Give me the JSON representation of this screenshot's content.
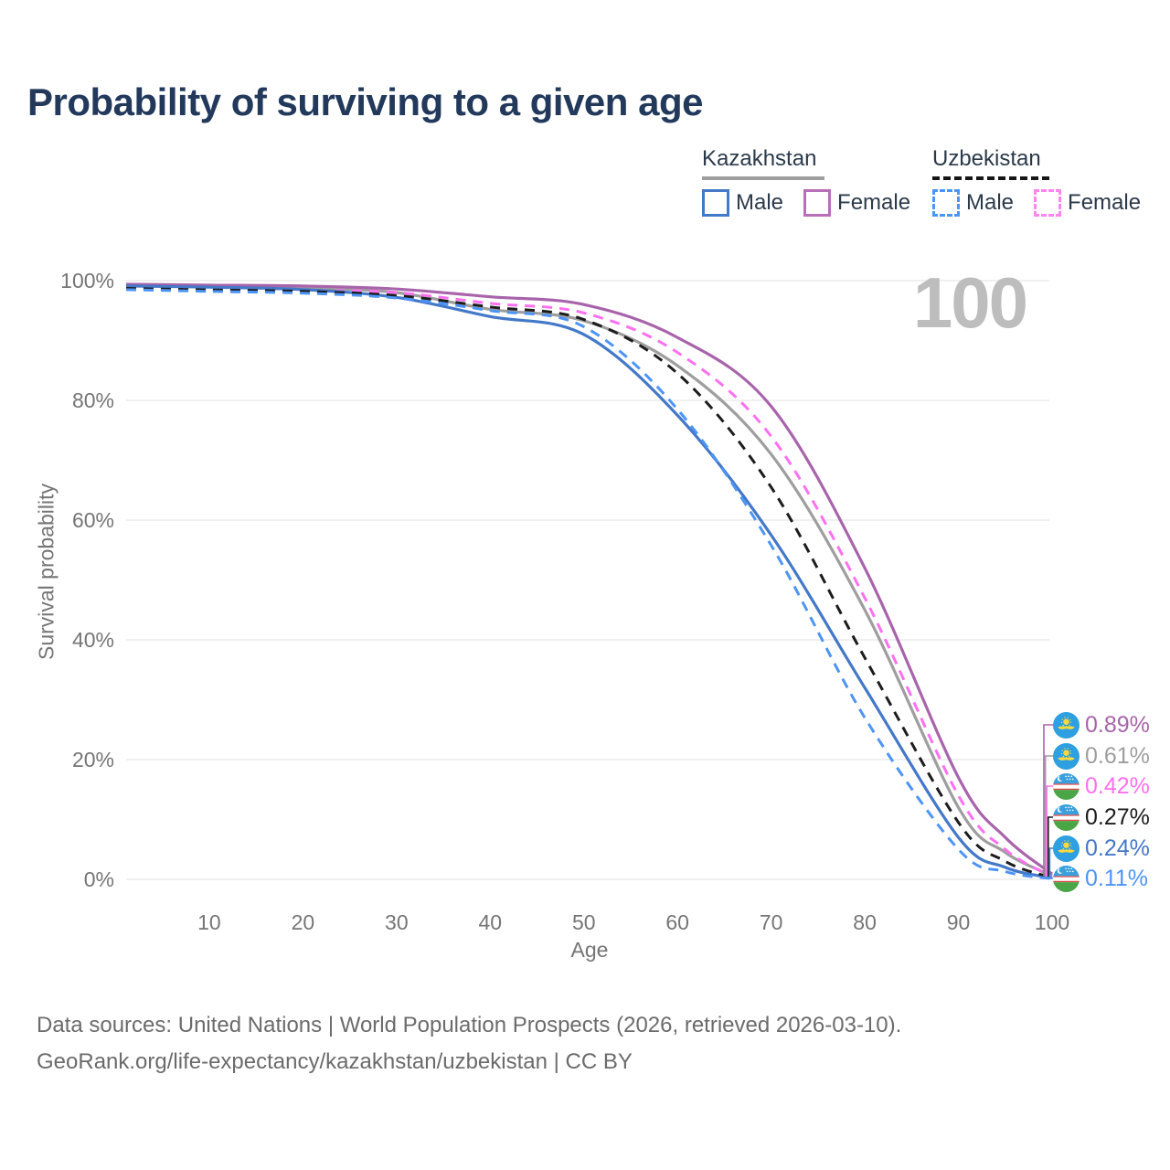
{
  "title": "Probability of surviving to a given age",
  "watermark_age": "100",
  "legend": {
    "groups": [
      {
        "label": "Kazakhstan",
        "underline_style": "solid",
        "underline_color": "#9e9e9e",
        "items": [
          {
            "label": "Male",
            "color": "#4478c8",
            "style": "solid"
          },
          {
            "label": "Female",
            "color": "#b76fb8",
            "style": "solid"
          }
        ]
      },
      {
        "label": "Uzbekistan",
        "underline_style": "dashed",
        "underline_color": "#161616",
        "items": [
          {
            "label": "Male",
            "color": "#4d94f7",
            "style": "dashed"
          },
          {
            "label": "Female",
            "color": "#ff85ef",
            "style": "dashed"
          }
        ]
      }
    ]
  },
  "right_labels": [
    {
      "value": "0.89%",
      "color": "#a864ab",
      "flag": "kazakhstan",
      "series": "Kazakhstan Female"
    },
    {
      "value": "0.61%",
      "color": "#9e9e9e",
      "flag": "kazakhstan",
      "series": "Kazakhstan Both sexes"
    },
    {
      "value": "0.42%",
      "color": "#ff70f0",
      "flag": "uzbekistan",
      "series": "Uzbekistan Female"
    },
    {
      "value": "0.27%",
      "color": "#1c1c1c",
      "flag": "uzbekistan",
      "series": "Uzbekistan Both sexes"
    },
    {
      "value": "0.24%",
      "color": "#4478c8",
      "flag": "kazakhstan",
      "series": "Kazakhstan Male"
    },
    {
      "value": "0.11%",
      "color": "#4d94f7",
      "flag": "uzbekistan",
      "series": "Uzbekistan Male"
    }
  ],
  "chart_data": {
    "type": "line",
    "title": "Probability of surviving to a given age",
    "xlabel": "Age",
    "ylabel": "Survival probability",
    "xlim": [
      0,
      100
    ],
    "ylim": [
      0,
      100
    ],
    "grid": "horizontal-only",
    "legend_position": "top-right",
    "x_ticks": [
      10,
      20,
      30,
      40,
      50,
      60,
      70,
      80,
      90,
      100
    ],
    "y_ticks_percent": [
      0,
      20,
      40,
      60,
      80,
      100
    ],
    "ages": [
      0,
      10,
      20,
      30,
      40,
      50,
      60,
      70,
      80,
      90,
      95,
      100
    ],
    "series": [
      {
        "name": "Kazakhstan Female",
        "country": "Kazakhstan",
        "sex": "Female",
        "style": "solid",
        "color": "#a864ab",
        "values": [
          99.4,
          99.25,
          99.1,
          98.6,
          97.3,
          96.0,
          90.5,
          79.0,
          52.0,
          17.0,
          7.0,
          0.89
        ],
        "survival_at_100": "0.89%"
      },
      {
        "name": "Kazakhstan Both sexes",
        "country": "Kazakhstan",
        "sex": "Both",
        "style": "solid",
        "color": "#9e9e9e",
        "values": [
          99.25,
          99.1,
          98.8,
          98.0,
          95.2,
          93.3,
          85.8,
          71.0,
          45.0,
          12.0,
          4.5,
          0.61
        ],
        "survival_at_100": "0.61%"
      },
      {
        "name": "Uzbekistan Female",
        "country": "Uzbekistan",
        "sex": "Female",
        "style": "dashed",
        "color": "#ff70f0",
        "values": [
          98.8,
          98.6,
          98.4,
          98.0,
          96.2,
          94.6,
          88.0,
          74.0,
          47.0,
          14.0,
          5.0,
          0.42
        ],
        "survival_at_100": "0.42%"
      },
      {
        "name": "Uzbekistan Both sexes",
        "country": "Uzbekistan",
        "sex": "Both",
        "style": "dashed",
        "color": "#1c1c1c",
        "values": [
          98.7,
          98.45,
          98.2,
          97.5,
          95.6,
          93.5,
          84.5,
          65.5,
          37.0,
          9.5,
          3.0,
          0.27
        ],
        "survival_at_100": "0.27%"
      },
      {
        "name": "Kazakhstan Male",
        "country": "Kazakhstan",
        "sex": "Male",
        "style": "solid",
        "color": "#4478c8",
        "values": [
          99.1,
          98.9,
          98.5,
          97.2,
          94.0,
          91.0,
          77.5,
          57.5,
          32.0,
          7.0,
          2.0,
          0.24
        ],
        "survival_at_100": "0.24%"
      },
      {
        "name": "Uzbekistan Male",
        "country": "Uzbekistan",
        "sex": "Male",
        "style": "dashed",
        "color": "#4d94f7",
        "values": [
          98.5,
          98.2,
          97.9,
          97.1,
          95.0,
          92.3,
          78.5,
          55.8,
          27.0,
          5.0,
          1.3,
          0.11
        ],
        "survival_at_100": "0.11%"
      }
    ]
  },
  "footer": {
    "line1": "Data sources: United Nations | World Population Prospects (2026, retrieved 2026-03-10).",
    "line2": "GeoRank.org/life-expectancy/kazakhstan/uzbekistan | CC BY"
  }
}
